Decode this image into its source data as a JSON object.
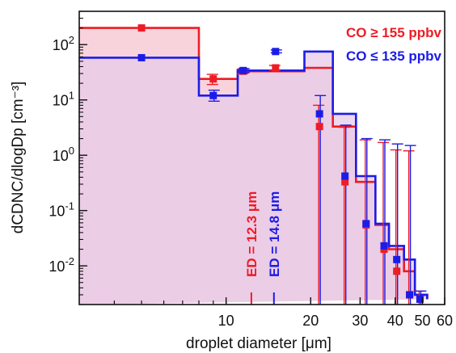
{
  "chart_data": {
    "type": "line",
    "xlabel": "droplet diameter [μm]",
    "ylabel": "dCDNC/dlogDp [cm⁻³]",
    "xscale": "log",
    "yscale": "log",
    "xlim": [
      3,
      60
    ],
    "ylim": [
      0.002,
      400
    ],
    "x_ticks": [
      {
        "value": 10,
        "label": "10"
      },
      {
        "value": 20,
        "label": "20"
      },
      {
        "value": 30,
        "label": "30"
      },
      {
        "value": 40,
        "label": "40"
      },
      {
        "value": 50,
        "label": "50"
      },
      {
        "value": 60,
        "label": "60"
      }
    ],
    "y_ticks": [
      {
        "value": 0.01,
        "base": "10",
        "exp": "-2"
      },
      {
        "value": 0.1,
        "base": "10",
        "exp": "-1"
      },
      {
        "value": 1,
        "base": "10",
        "exp": "0"
      },
      {
        "value": 10,
        "base": "10",
        "exp": "1"
      },
      {
        "value": 100,
        "base": "10",
        "exp": "2"
      }
    ],
    "legend_position": "top-right",
    "series": [
      {
        "name": "CO ≥ 155 ppbv",
        "color": "#ee1c24",
        "fill": "#f9d3dc",
        "bin_edges": [
          3,
          8,
          11,
          19,
          24,
          29,
          34,
          38,
          43,
          47,
          52
        ],
        "x": [
          5.0,
          9.0,
          11.5,
          15.0,
          21.5,
          26.5,
          31.5,
          36.5,
          40.5,
          45.0,
          49.0
        ],
        "y": [
          200,
          24,
          33,
          38,
          3.3,
          0.33,
          0.055,
          0.02,
          0.008,
          0.003,
          0.0025
        ],
        "err_upper": [
          200,
          29,
          36,
          42,
          8.0,
          3.2,
          1.9,
          1.7,
          1.25,
          1.2,
          0.0035
        ],
        "err_lower": [
          200,
          19,
          30,
          34,
          0.002,
          0.002,
          0.002,
          0.002,
          0.002,
          0.002,
          0.002
        ]
      },
      {
        "name": "CO ≤ 135 ppbv",
        "color": "#1c1ce8",
        "fill": "#e7cbea",
        "bin_edges": [
          3,
          8,
          11,
          19,
          24,
          29,
          34,
          38,
          43,
          47,
          52
        ],
        "x": [
          5.0,
          9.0,
          11.5,
          15.0,
          21.5,
          26.5,
          31.5,
          36.5,
          40.5,
          45.0,
          49.0
        ],
        "y": [
          58,
          12,
          34,
          75,
          5.6,
          0.42,
          0.058,
          0.023,
          0.013,
          0.003,
          0.0025
        ],
        "err_upper": [
          58,
          15,
          37,
          80,
          12,
          3.5,
          2.0,
          1.9,
          1.6,
          1.5,
          0.0035
        ],
        "err_lower": [
          58,
          9.5,
          31,
          71,
          0.002,
          0.002,
          0.002,
          0.002,
          0.002,
          0.002,
          0.002
        ]
      }
    ],
    "annotations": [
      {
        "text": "ED = 12.3 μm",
        "x": 12.3,
        "color": "#ee1c24"
      },
      {
        "text": "ED = 14.8 μm",
        "x": 14.8,
        "color": "#1c1ce8"
      }
    ]
  }
}
